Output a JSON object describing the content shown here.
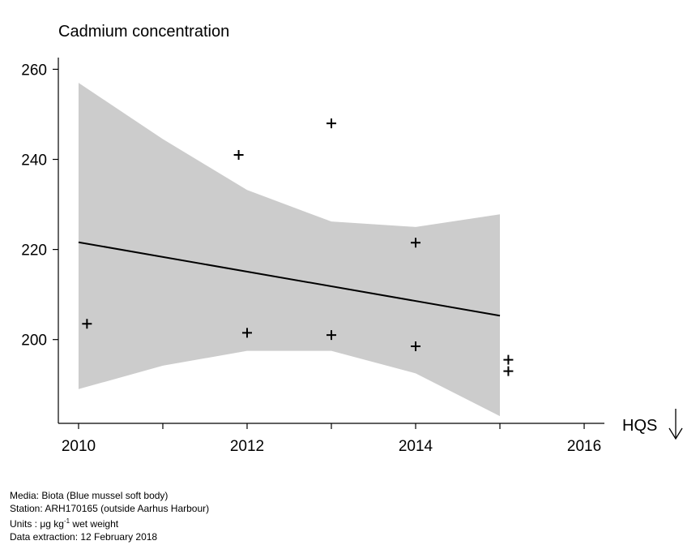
{
  "chart_data": {
    "type": "scatter",
    "title": "Cadmium concentration",
    "xlabel": "",
    "ylabel": "",
    "xlim": [
      2009.76,
      2016.24
    ],
    "ylim": [
      181.4,
      262.6
    ],
    "x_ticks": [
      "2010",
      "2012",
      "2014",
      "2016"
    ],
    "y_ticks": [
      "200",
      "220",
      "240",
      "260"
    ],
    "grid": false,
    "points": [
      {
        "x": 2010.1,
        "y": 203.5
      },
      {
        "x": 2011.9,
        "y": 241.0
      },
      {
        "x": 2012.0,
        "y": 201.5
      },
      {
        "x": 2013.0,
        "y": 248.0
      },
      {
        "x": 2013.0,
        "y": 201.0
      },
      {
        "x": 2014.0,
        "y": 221.5
      },
      {
        "x": 2014.0,
        "y": 198.5
      },
      {
        "x": 2015.1,
        "y": 195.5
      },
      {
        "x": 2015.1,
        "y": 193.0
      }
    ],
    "trend": {
      "x": [
        2010,
        2015
      ],
      "y": [
        221.6,
        205.3
      ]
    },
    "confidence_band": {
      "x": [
        2010,
        2011,
        2012,
        2013,
        2014,
        2015
      ],
      "upper": [
        257.0,
        244.5,
        233.2,
        226.2,
        225.0,
        227.8
      ],
      "lower": [
        189.0,
        194.2,
        197.5,
        197.5,
        192.5,
        183.0
      ]
    },
    "hqs_label": "HQS",
    "hqs_direction": "below",
    "colors": {
      "band": "#cccccc",
      "line": "#000000",
      "points": "#000000"
    }
  },
  "footer": {
    "media": "Media: Biota (Blue mussel soft body)",
    "station": "Station: ARH170165 (outside Aarhus Harbour)",
    "units_prefix": "Units : μg kg",
    "units_sup": "-1",
    "units_suffix": " wet weight",
    "extraction": "Data extraction: 12 February 2018"
  }
}
